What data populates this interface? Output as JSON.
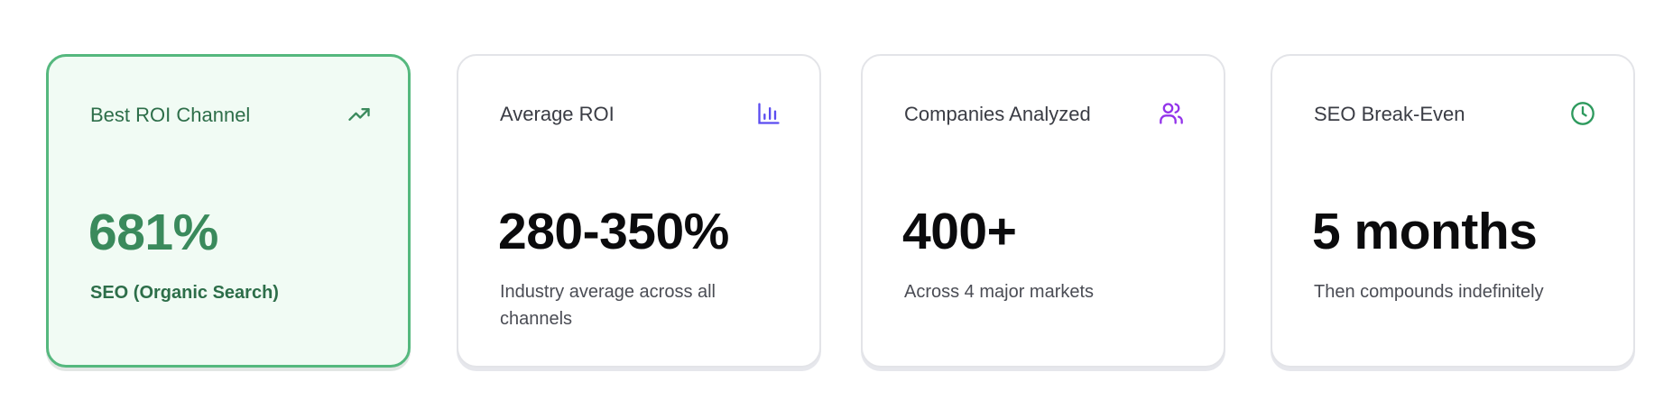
{
  "cards": [
    {
      "title": "Best ROI Channel",
      "icon": "trending-up-icon",
      "value": "681%",
      "subtitle": "SEO (Organic Search)",
      "highlighted": true,
      "accent": "#3a8a5c"
    },
    {
      "title": "Average ROI",
      "icon": "bar-chart-icon",
      "value": "280-350%",
      "subtitle": "Industry average across all channels",
      "accent": "#5b4cf0"
    },
    {
      "title": "Companies Analyzed",
      "icon": "users-icon",
      "value": "400+",
      "subtitle": "Across 4 major markets",
      "accent": "#9333ea"
    },
    {
      "title": "SEO Break-Even",
      "icon": "clock-icon",
      "value": "5 months",
      "subtitle": "Then compounds indefinitely",
      "accent": "#2e9a5e"
    }
  ]
}
